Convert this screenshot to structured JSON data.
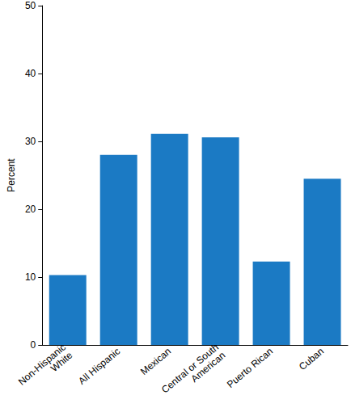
{
  "chart_data": {
    "type": "bar",
    "y_label": "Percent",
    "categories": [
      "Non-Hispanic\nWhite",
      "All Hispanic",
      "Mexican",
      "Central or South\nAmerican",
      "Puerto Rican",
      "Cuban"
    ],
    "values": [
      10.3,
      28.0,
      31.1,
      30.6,
      12.3,
      24.5
    ],
    "color": "#1b7ac4",
    "ylim": [
      0,
      50
    ],
    "yticks": [
      0,
      10,
      20,
      30,
      40,
      50
    ],
    "grid": false
  }
}
